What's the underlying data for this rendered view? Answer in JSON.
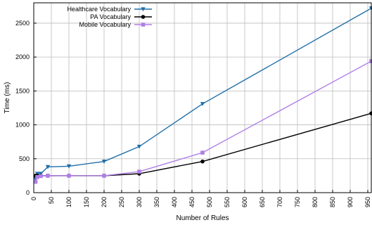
{
  "chart_data": {
    "type": "line",
    "xlabel": "Number of Rules",
    "ylabel": "Time (ms)",
    "xlim": [
      0,
      960
    ],
    "ylim": [
      0,
      2800
    ],
    "x_ticks": [
      0,
      50,
      100,
      150,
      200,
      250,
      300,
      350,
      400,
      450,
      500,
      550,
      600,
      650,
      700,
      750,
      800,
      850,
      900,
      950
    ],
    "y_ticks": [
      0,
      500,
      1000,
      1500,
      2000,
      2500
    ],
    "grid": true,
    "legend_position": "top-left",
    "series": [
      {
        "name": "Healthcare Vocabulary",
        "color": "#1f6fa8",
        "marker": "triangle-down",
        "x": [
          5,
          10,
          20,
          40,
          100,
          200,
          300,
          480,
          960
        ],
        "y": [
          200,
          280,
          280,
          380,
          390,
          460,
          680,
          1310,
          2720
        ]
      },
      {
        "name": "PA Vocabulary",
        "color": "#000000",
        "marker": "circle",
        "x": [
          5,
          10,
          20,
          40,
          100,
          200,
          300,
          480,
          960
        ],
        "y": [
          250,
          250,
          250,
          250,
          250,
          250,
          280,
          460,
          1170
        ]
      },
      {
        "name": "Mobile Vocabulary",
        "color": "#b07ee8",
        "marker": "square",
        "x": [
          5,
          10,
          20,
          40,
          100,
          200,
          300,
          480,
          960
        ],
        "y": [
          160,
          230,
          245,
          250,
          250,
          250,
          310,
          590,
          1940
        ]
      }
    ]
  }
}
